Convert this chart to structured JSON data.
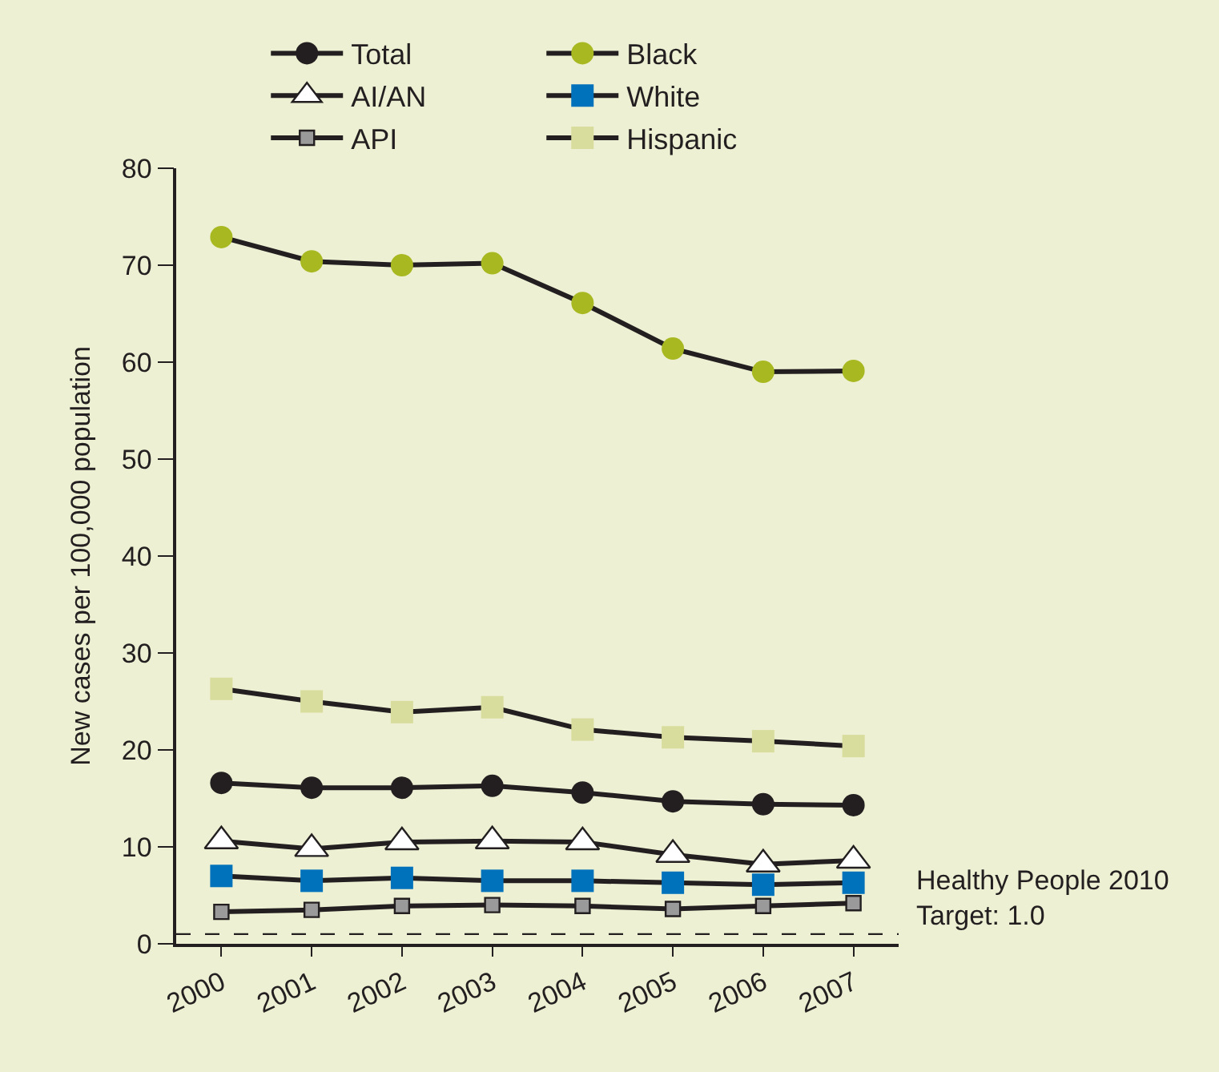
{
  "chart_data": {
    "type": "line",
    "ylabel": "New cases per 100,000 population",
    "categories": [
      "2000",
      "2001",
      "2002",
      "2003",
      "2004",
      "2005",
      "2006",
      "2007"
    ],
    "ylim": [
      0,
      80
    ],
    "yticks": [
      0,
      10,
      20,
      30,
      40,
      50,
      60,
      70,
      80
    ],
    "grid": false,
    "legend": "top",
    "series": [
      {
        "name": "Total",
        "color": "#231f20",
        "marker": "circle",
        "values": [
          16.6,
          16.1,
          16.1,
          16.3,
          15.6,
          14.7,
          14.4,
          14.3
        ]
      },
      {
        "name": "Black",
        "color": "#a8b820",
        "marker": "circle",
        "values": [
          72.9,
          70.4,
          70.0,
          70.2,
          66.1,
          61.4,
          59.0,
          59.1
        ]
      },
      {
        "name": "AI/AN",
        "color": "#ffffff",
        "marker": "triangle",
        "values": [
          10.6,
          9.8,
          10.5,
          10.6,
          10.5,
          9.2,
          8.2,
          8.6
        ]
      },
      {
        "name": "White",
        "color": "#0072bc",
        "marker": "square",
        "values": [
          7.0,
          6.5,
          6.8,
          6.5,
          6.5,
          6.3,
          6.1,
          6.3
        ]
      },
      {
        "name": "API",
        "color": "#9a9a9a",
        "marker": "square",
        "values": [
          3.3,
          3.5,
          3.9,
          4.0,
          3.9,
          3.6,
          3.9,
          4.2
        ]
      },
      {
        "name": "Hispanic",
        "color": "#d8dc9c",
        "marker": "square",
        "values": [
          26.3,
          25.0,
          23.9,
          24.4,
          22.1,
          21.3,
          20.9,
          20.4
        ]
      }
    ],
    "ref_lines": [
      {
        "axis": "y",
        "value": 1.0,
        "label": "Healthy People 2010\nTarget: 1.0",
        "line_style": "dashed",
        "color": "#231f20"
      }
    ]
  }
}
